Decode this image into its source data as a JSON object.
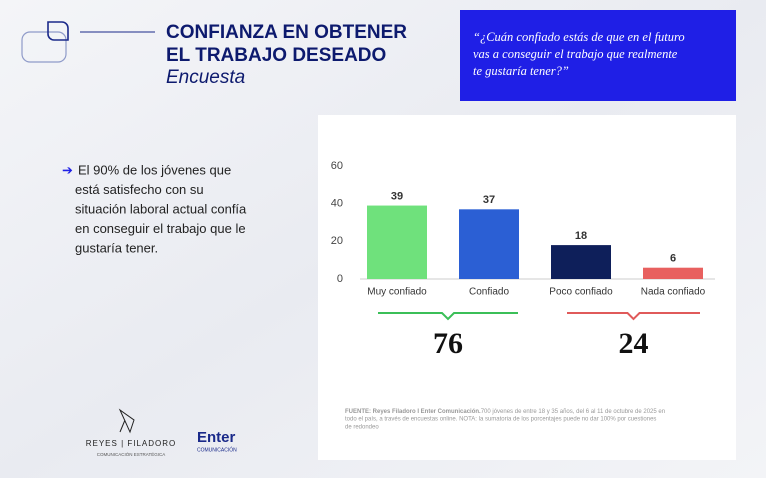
{
  "header": {
    "title_lines": [
      "CONFIANZA EN OBTENER",
      "EL TRABAJO DESEADO"
    ],
    "subtitle": "Encuesta"
  },
  "question": {
    "lines": [
      "“¿Cuán confiado estás de que en el futuro",
      "vas a conseguir el trabajo que realmente",
      "te gustaría tener?”"
    ]
  },
  "bullet": {
    "lines": [
      "El 90% de los jóvenes que",
      "está satisfecho con su",
      "situación laboral actual confía",
      "en conseguir el trabajo que le",
      "gustaría tener."
    ]
  },
  "chart_data": {
    "type": "bar",
    "categories": [
      "Muy confiado",
      "Confiado",
      "Poco confiado",
      "Nada confiado"
    ],
    "values": [
      39,
      37,
      18,
      6
    ],
    "colors": [
      "#6fe17c",
      "#2b5fd4",
      "#0e1f5a",
      "#e8605f"
    ],
    "ylim": [
      0,
      60
    ],
    "yticks": [
      0,
      20,
      40,
      60
    ],
    "grid": false
  },
  "groups": [
    {
      "total": "76",
      "color": "#3bbf58"
    },
    {
      "total": "24",
      "color": "#e05a5a"
    }
  ],
  "source": {
    "bold": "FUENTE: Reyes Filadoro I Enter Comunicación.",
    "lines": [
      "700 jóvenes de entre 18 y 35 años, del 6 al 11 de octubre de 2025 en",
      "todo el país, a través de encuestas online. NOTA: la sumatoria de los porcentajes puede no dar 100% por cuestiones",
      "de redondeo"
    ]
  },
  "logos": {
    "reyes": "REYES | FILADORO",
    "reyes_sub": "COMUNICACIÓN ESTRATÉGICA",
    "enter": "Enter",
    "enter_sub": "COMUNICACIÓN"
  }
}
